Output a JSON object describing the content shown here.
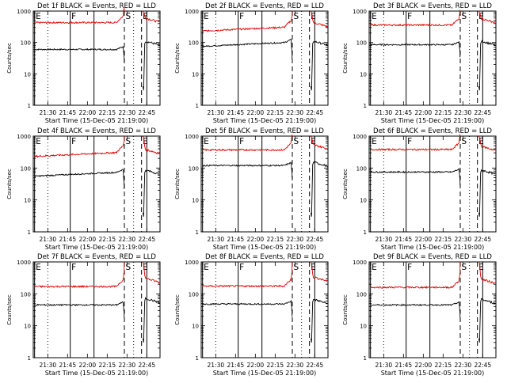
{
  "figure": {
    "ylabel": "Counts/sec",
    "xlabel": "Start Time (15-Dec-05 21:19:00)",
    "colors": {
      "events": "#000000",
      "lld": "#e00000",
      "axes": "#000000"
    }
  },
  "chart_data": [
    {
      "type": "line",
      "title": "Det 1f BLACK = Events, RED = LLD",
      "xlabel": "Start Time (15-Dec-05 21:19:00)",
      "ylabel": "Counts/sec",
      "x_ticks": [
        "21:30",
        "21:45",
        "22:00",
        "22:15",
        "22:30",
        "22:45"
      ],
      "y_scale": "log",
      "ylim": [
        1,
        1000
      ],
      "y_ticks": [
        "1",
        "10",
        "100",
        "1000"
      ],
      "xlim": [
        "21:19",
        "22:55"
      ],
      "markers": [
        "E",
        "F",
        "S",
        "E"
      ],
      "series": [
        {
          "name": "Events",
          "color": "#000000",
          "profile": "events",
          "base": 60,
          "end_value": 115
        },
        {
          "name": "LLD",
          "color": "#e00000",
          "profile": "lld",
          "base": 430,
          "end_value": 620
        }
      ]
    },
    {
      "type": "line",
      "title": "Det 2f BLACK = Events, RED = LLD",
      "xlabel": "Start Time (15-Dec-05 21:19:00)",
      "ylabel": "Counts/sec",
      "x_ticks": [
        "21:30",
        "21:45",
        "22:00",
        "22:15",
        "22:30",
        "22:45"
      ],
      "y_scale": "log",
      "ylim": [
        1,
        1000
      ],
      "y_ticks": [
        "1",
        "10",
        "100",
        "1000"
      ],
      "xlim": [
        "21:19",
        "22:55"
      ],
      "markers": [
        "E",
        "F",
        "S",
        "E"
      ],
      "series": [
        {
          "name": "Events",
          "color": "#000000",
          "profile": "events_rising",
          "base": 75,
          "end_value": 115
        },
        {
          "name": "LLD",
          "color": "#e00000",
          "profile": "lld_rising",
          "base": 230,
          "end_value": 450
        }
      ]
    },
    {
      "type": "line",
      "title": "Det 3f BLACK = Events, RED = LLD",
      "xlabel": "Start Time (15-Dec-05 21:19:00)",
      "ylabel": "Counts/sec",
      "x_ticks": [
        "21:30",
        "21:45",
        "22:00",
        "22:15",
        "22:30",
        "22:45"
      ],
      "y_scale": "log",
      "ylim": [
        1,
        1000
      ],
      "y_ticks": [
        "1",
        "10",
        "100",
        "1000"
      ],
      "xlim": [
        "21:19",
        "22:55"
      ],
      "markers": [
        "E",
        "F",
        "S",
        "E"
      ],
      "series": [
        {
          "name": "Events",
          "color": "#000000",
          "profile": "events",
          "base": 85,
          "end_value": 115
        },
        {
          "name": "LLD",
          "color": "#e00000",
          "profile": "lld",
          "base": 360,
          "end_value": 600
        }
      ]
    },
    {
      "type": "line",
      "title": "Det 4f BLACK = Events, RED = LLD",
      "xlabel": "Start Time (15-Dec-05 21:19:00)",
      "ylabel": "Counts/sec",
      "x_ticks": [
        "21:30",
        "21:45",
        "22:00",
        "22:15",
        "22:30",
        "22:45"
      ],
      "y_scale": "log",
      "ylim": [
        1,
        1000
      ],
      "y_ticks": [
        "1",
        "10",
        "100",
        "1000"
      ],
      "xlim": [
        "21:19",
        "22:55"
      ],
      "markers": [
        "E",
        "F",
        "S",
        "E"
      ],
      "series": [
        {
          "name": "Events",
          "color": "#000000",
          "profile": "events_rising",
          "base": 55,
          "end_value": 90
        },
        {
          "name": "LLD",
          "color": "#e00000",
          "profile": "lld_rising",
          "base": 230,
          "end_value": 400
        }
      ]
    },
    {
      "type": "line",
      "title": "Det 5f BLACK = Events, RED = LLD",
      "xlabel": "Start Time (15-Dec-05 21:19:00)",
      "ylabel": "Counts/sec",
      "x_ticks": [
        "21:30",
        "21:45",
        "22:00",
        "22:15",
        "22:30",
        "22:45"
      ],
      "y_scale": "log",
      "ylim": [
        1,
        1000
      ],
      "y_ticks": [
        "1",
        "10",
        "100",
        "1000"
      ],
      "xlim": [
        "21:19",
        "22:55"
      ],
      "markers": [
        "E",
        "F",
        "S",
        "E"
      ],
      "series": [
        {
          "name": "Events",
          "color": "#000000",
          "profile": "events",
          "base": 120,
          "end_value": 160
        },
        {
          "name": "LLD",
          "color": "#e00000",
          "profile": "lld",
          "base": 370,
          "end_value": 560
        }
      ]
    },
    {
      "type": "line",
      "title": "Det 6f BLACK = Events, RED = LLD",
      "xlabel": "Start Time (15-Dec-05 21:19:00)",
      "ylabel": "Counts/sec",
      "x_ticks": [
        "21:30",
        "21:45",
        "22:00",
        "22:15",
        "22:30",
        "22:45"
      ],
      "y_scale": "log",
      "ylim": [
        1,
        1000
      ],
      "y_ticks": [
        "1",
        "10",
        "100",
        "1000"
      ],
      "xlim": [
        "21:19",
        "22:55"
      ],
      "markers": [
        "E",
        "F",
        "S",
        "E"
      ],
      "series": [
        {
          "name": "Events",
          "color": "#000000",
          "profile": "events",
          "base": 75,
          "end_value": 90
        },
        {
          "name": "LLD",
          "color": "#e00000",
          "profile": "lld",
          "base": 380,
          "end_value": 500
        }
      ]
    },
    {
      "type": "line",
      "title": "Det 7f BLACK = Events, RED = LLD",
      "xlabel": "Start Time (15-Dec-05 21:19:00)",
      "ylabel": "Counts/sec",
      "x_ticks": [
        "21:30",
        "21:45",
        "22:00",
        "22:15",
        "22:30",
        "22:45"
      ],
      "y_scale": "log",
      "ylim": [
        1,
        1000
      ],
      "y_ticks": [
        "1",
        "10",
        "100",
        "1000"
      ],
      "xlim": [
        "21:19",
        "22:55"
      ],
      "markers": [
        "E",
        "F",
        "S",
        "E"
      ],
      "series": [
        {
          "name": "Events",
          "color": "#000000",
          "profile": "events",
          "base": 45,
          "end_value": 75
        },
        {
          "name": "LLD",
          "color": "#e00000",
          "profile": "lld",
          "base": 170,
          "end_value": 320
        }
      ]
    },
    {
      "type": "line",
      "title": "Det 8f BLACK = Events, RED = LLD",
      "xlabel": "Start Time (15-Dec-05 21:19:00)",
      "ylabel": "Counts/sec",
      "x_ticks": [
        "21:30",
        "21:45",
        "22:00",
        "22:15",
        "22:30",
        "22:45"
      ],
      "y_scale": "log",
      "ylim": [
        1,
        1000
      ],
      "y_ticks": [
        "1",
        "10",
        "100",
        "1000"
      ],
      "xlim": [
        "21:19",
        "22:55"
      ],
      "markers": [
        "E",
        "F",
        "S",
        "E"
      ],
      "series": [
        {
          "name": "Events",
          "color": "#000000",
          "profile": "events",
          "base": 48,
          "end_value": 70
        },
        {
          "name": "LLD",
          "color": "#e00000",
          "profile": "lld",
          "base": 175,
          "end_value": 350
        }
      ]
    },
    {
      "type": "line",
      "title": "Det 9f BLACK = Events, RED = LLD",
      "xlabel": "Start Time (15-Dec-05 21:19:00)",
      "ylabel": "Counts/sec",
      "x_ticks": [
        "21:30",
        "21:45",
        "22:00",
        "22:15",
        "22:30",
        "22:45"
      ],
      "y_scale": "log",
      "ylim": [
        1,
        1000
      ],
      "y_ticks": [
        "1",
        "10",
        "100",
        "1000"
      ],
      "xlim": [
        "21:19",
        "22:55"
      ],
      "markers": [
        "E",
        "F",
        "S",
        "E"
      ],
      "series": [
        {
          "name": "Events",
          "color": "#000000",
          "profile": "events",
          "base": 45,
          "end_value": 70
        },
        {
          "name": "LLD",
          "color": "#e00000",
          "profile": "lld",
          "base": 160,
          "end_value": 300
        }
      ]
    }
  ]
}
